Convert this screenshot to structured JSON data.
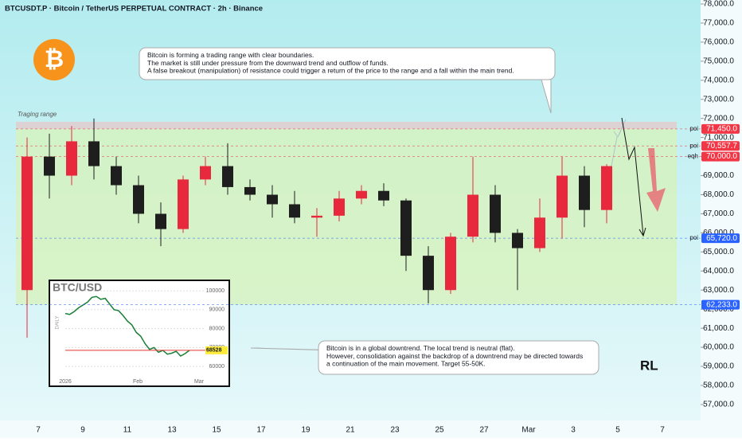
{
  "chart_data": {
    "type": "candlestick",
    "title": "BTCUSDT.P · Bitcoin / TetherUS PERPETUAL CONTRACT · 2h · Binance",
    "range_label": "Traging range",
    "logo": "₿",
    "categories": [
      null,
      "7",
      null,
      "9",
      null,
      "11",
      null,
      "13",
      null,
      "15",
      null,
      "17",
      null,
      "19",
      null,
      "21",
      null,
      "23",
      null,
      "25",
      null,
      "27",
      null,
      "Mar",
      null,
      "3",
      null,
      "5",
      null,
      "7"
    ],
    "open": [
      63000,
      70000,
      69000,
      70800,
      69500,
      68500,
      67000,
      66200,
      68800,
      69500,
      68400,
      68000,
      67500,
      66800,
      66900,
      67800,
      68200,
      67700,
      64800,
      63000,
      65800,
      68000,
      66000,
      65200,
      66800,
      69000,
      67200,
      null,
      null,
      null
    ],
    "high": [
      71000,
      71200,
      71600,
      72000,
      70000,
      69000,
      67600,
      69000,
      70000,
      70700,
      68800,
      68500,
      68200,
      67300,
      68200,
      68500,
      68600,
      67800,
      65300,
      66000,
      70000,
      68500,
      66200,
      67800,
      70000,
      69500,
      69600,
      null,
      null,
      null
    ],
    "low": [
      60500,
      67800,
      68500,
      68800,
      68000,
      66500,
      65300,
      66000,
      68500,
      68000,
      67700,
      66800,
      66500,
      65800,
      66600,
      67500,
      67400,
      64000,
      62300,
      62800,
      65500,
      65500,
      63000,
      65000,
      65700,
      66300,
      66500,
      null,
      null,
      null
    ],
    "close": [
      70000,
      69000,
      70800,
      69500,
      68500,
      67000,
      66200,
      68800,
      69500,
      68400,
      68000,
      67500,
      66800,
      66900,
      67800,
      68200,
      67700,
      64800,
      63000,
      65800,
      68000,
      66000,
      65200,
      66800,
      69000,
      67200,
      69500,
      null,
      null,
      null
    ],
    "up_color": "#e8283c",
    "down_color": "#1e1e1e",
    "ylim": [
      56163,
      78209
    ],
    "yticks": [
      {
        "value": 78000,
        "label": "78,000.0"
      },
      {
        "value": 77000,
        "label": "77,000.0"
      },
      {
        "value": 76000,
        "label": "76,000.0"
      },
      {
        "value": 75000,
        "label": "75,000.0"
      },
      {
        "value": 74000,
        "label": "74,000.0"
      },
      {
        "value": 73000,
        "label": "73,000.0"
      },
      {
        "value": 72000,
        "label": "72,000.0"
      },
      {
        "value": 71000,
        "label": "71,000.0"
      },
      {
        "value": 70000,
        "label": "70,000.0"
      },
      {
        "value": 69000,
        "label": "69,000.0"
      },
      {
        "value": 68000,
        "label": "68,000.0"
      },
      {
        "value": 67000,
        "label": "67,000.0"
      },
      {
        "value": 66000,
        "label": "66,000.0"
      },
      {
        "value": 65000,
        "label": "65,000.0"
      },
      {
        "value": 64000,
        "label": "64,000.0"
      },
      {
        "value": 63000,
        "label": "63,000.0"
      },
      {
        "value": 62000,
        "label": "62,000.0"
      },
      {
        "value": 61000,
        "label": "61,000.0"
      },
      {
        "value": 60000,
        "label": "60,000.0"
      },
      {
        "value": 59000,
        "label": "59,000.0"
      },
      {
        "value": 58000,
        "label": "58,000.0"
      },
      {
        "value": 57000,
        "label": "57,000.0"
      }
    ],
    "levels": [
      {
        "value": 71450,
        "label": "71,450.0",
        "tag": "poi",
        "color": "#f23645"
      },
      {
        "value": 70557.7,
        "label": "70,557.7",
        "tag": "poi",
        "color": "#f23645"
      },
      {
        "value": 70000,
        "label": "70,000.0",
        "tag": "eqh",
        "color": "#f23645"
      },
      {
        "value": 65720,
        "label": "65,720.0",
        "tag": "poi",
        "color": "#2962ff"
      },
      {
        "value": 62233,
        "label": "62,233.0",
        "color": "#2962ff"
      }
    ],
    "annotations": [
      "Bitcoin is forming a trading range with clear boundaries.\nThe market is still under pressure from the downward trend and outflow of funds.\nA false breakout (manipulation) of resistance could trigger a return of the price to the range and a fall within the main trend.",
      "Bitcoin is in a global downtrend. The local trend is neutral (flat).\nHowever, consolidation against the backdrop of a downtrend may be directed towards\na continuation of the main movement. Target 55-50K."
    ],
    "inset": {
      "title": "BTC/USD",
      "side_label": "DAILY",
      "values": [
        88000,
        87500,
        89000,
        91000,
        92500,
        94000,
        96500,
        97000,
        95500,
        96000,
        93000,
        90000,
        89500,
        87000,
        84000,
        82000,
        78000,
        76000,
        72000,
        69000,
        70000,
        67500,
        68500,
        66500,
        67000,
        68000,
        65500,
        66800,
        68528
      ],
      "ylim": [
        55000,
        103000
      ],
      "yticks": [
        100000,
        90000,
        80000,
        70000,
        60000
      ],
      "xticks": [
        "2026",
        "Feb",
        "Mar"
      ],
      "price": 68528
    }
  }
}
